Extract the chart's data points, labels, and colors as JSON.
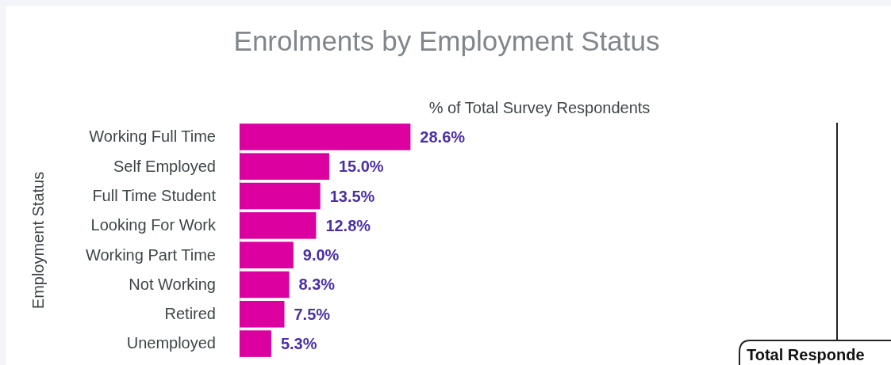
{
  "chart_data": {
    "type": "bar",
    "orientation": "horizontal",
    "title": "Enrolments by Employment Status",
    "xlabel": "% of Total Survey Respondents",
    "ylabel": "Employment Status",
    "categories": [
      "Working Full Time",
      "Self Employed",
      "Full Time Student",
      "Looking For Work",
      "Working Part Time",
      "Not Working",
      "Retired",
      "Unemployed"
    ],
    "values": [
      28.6,
      15.0,
      13.5,
      12.8,
      9.0,
      8.3,
      7.5,
      5.3
    ],
    "value_labels": [
      "28.6%",
      "15.0%",
      "13.5%",
      "12.8%",
      "9.0%",
      "8.3%",
      "7.5%",
      "5.3%"
    ],
    "color": "#dc00a0",
    "xlim": [
      0,
      100
    ],
    "tick_labels": "y",
    "annotations": [
      "Total Responde"
    ]
  }
}
